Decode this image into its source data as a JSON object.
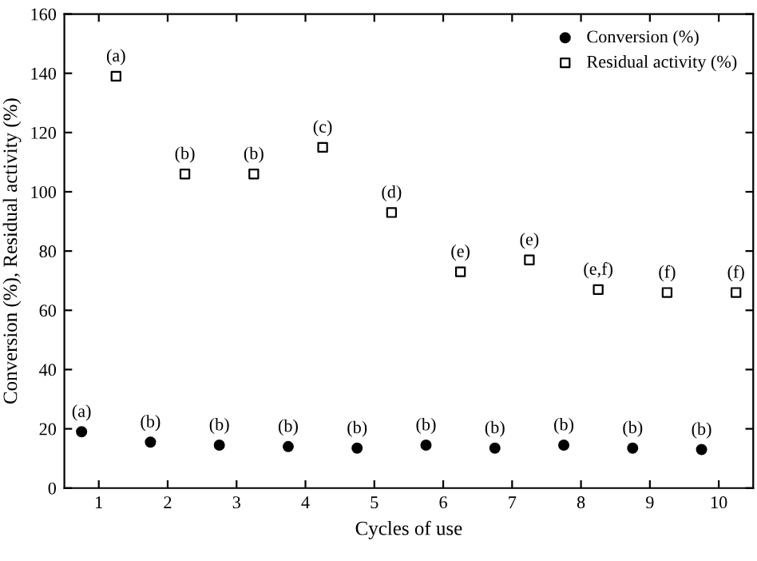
{
  "chart_data": {
    "type": "scatter",
    "xlabel": "Cycles of use",
    "ylabel": "Conversion (%), Residual activity (%)",
    "xlim": [
      0.5,
      10.5
    ],
    "xticks": [
      1,
      2,
      3,
      4,
      5,
      6,
      7,
      8,
      9,
      10
    ],
    "ylim": [
      0,
      160
    ],
    "yticks": [
      0,
      20,
      40,
      60,
      80,
      100,
      120,
      140,
      160
    ],
    "grid": false,
    "legend": "top right",
    "series": [
      {
        "name": "Conversion (%)",
        "color": "#000000",
        "marker": "circle",
        "x": [
          0.75,
          1.75,
          2.75,
          3.75,
          4.75,
          5.75,
          6.75,
          7.75,
          8.75,
          9.75
        ],
        "values": [
          19,
          15.5,
          14.5,
          14,
          13.5,
          14.5,
          13.5,
          14.5,
          13.5,
          13
        ]
      },
      {
        "name": "Residual activity (%)",
        "color": "#000000",
        "marker": "square",
        "x": [
          1.25,
          2.25,
          3.25,
          4.25,
          5.25,
          6.25,
          7.25,
          8.25,
          9.25,
          10.25
        ],
        "values": [
          139,
          106,
          106,
          115,
          93,
          73,
          77,
          67,
          66,
          66
        ]
      }
    ],
    "annotations": [
      {
        "text": "(a)",
        "x": 0.75,
        "y": 19
      },
      {
        "text": "(b)",
        "x": 1.75,
        "y": 15.5
      },
      {
        "text": "(b)",
        "x": 2.75,
        "y": 14.5
      },
      {
        "text": "(b)",
        "x": 3.75,
        "y": 14
      },
      {
        "text": "(b)",
        "x": 4.75,
        "y": 13.5
      },
      {
        "text": "(b)",
        "x": 5.75,
        "y": 14.5
      },
      {
        "text": "(b)",
        "x": 6.75,
        "y": 13.5
      },
      {
        "text": "(b)",
        "x": 7.75,
        "y": 14.5
      },
      {
        "text": "(b)",
        "x": 8.75,
        "y": 13.5
      },
      {
        "text": "(b)",
        "x": 9.75,
        "y": 13
      },
      {
        "text": "(a)",
        "x": 1.25,
        "y": 139
      },
      {
        "text": "(b)",
        "x": 2.25,
        "y": 106
      },
      {
        "text": "(b)",
        "x": 3.25,
        "y": 106
      },
      {
        "text": "(c)",
        "x": 4.25,
        "y": 115
      },
      {
        "text": "(d)",
        "x": 5.25,
        "y": 93
      },
      {
        "text": "(e)",
        "x": 6.25,
        "y": 73
      },
      {
        "text": "(e)",
        "x": 7.25,
        "y": 77
      },
      {
        "text": "(e,f)",
        "x": 8.25,
        "y": 67
      },
      {
        "text": "(f)",
        "x": 9.25,
        "y": 66
      },
      {
        "text": "(f)",
        "x": 10.25,
        "y": 66
      }
    ]
  }
}
